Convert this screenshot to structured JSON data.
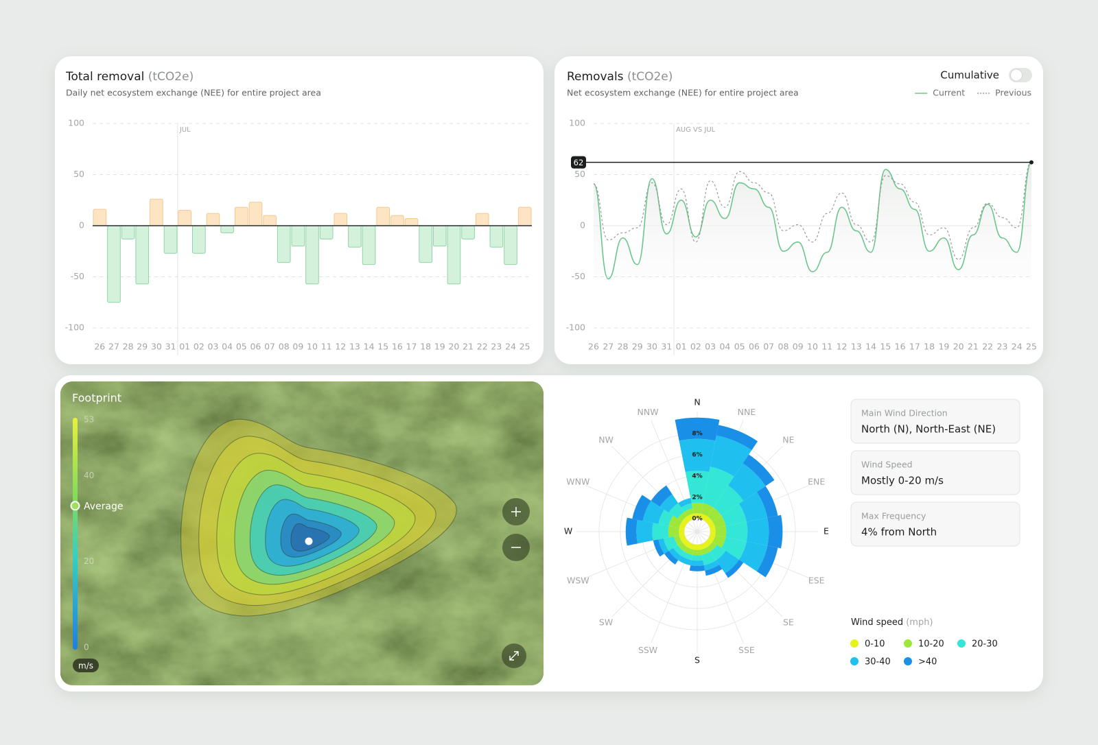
{
  "chart_data": [
    {
      "type": "bar",
      "title": "Total removal",
      "title_unit": "(tCO2e)",
      "subtitle": "Daily net ecosystem exchange (NEE) for entire project area",
      "annotation": "JUL",
      "categories": [
        "26",
        "27",
        "28",
        "29",
        "30",
        "31",
        "01",
        "02",
        "03",
        "04",
        "05",
        "06",
        "07",
        "08",
        "09",
        "10",
        "11",
        "12",
        "13",
        "14",
        "15",
        "16",
        "17",
        "18",
        "19",
        "20",
        "21",
        "22",
        "23",
        "24",
        "25"
      ],
      "values": [
        16,
        -75,
        -13,
        -57,
        26,
        -27,
        15,
        -27,
        12,
        -7,
        18,
        23,
        10,
        -36,
        -20,
        -57,
        -13,
        12,
        -21,
        -38,
        18,
        10,
        7,
        -36,
        -20,
        -57,
        -13,
        12,
        -21,
        -38,
        18
      ],
      "positive_color": "#fde4c2",
      "negative_color": "#d4f1dc",
      "ylim": [
        -100,
        100
      ],
      "yticks": [
        100,
        50,
        0,
        -50,
        -100
      ],
      "grid": true
    },
    {
      "type": "line",
      "title": "Removals",
      "title_unit": "(tCO2e)",
      "subtitle": "Net ecosystem exchange (NEE) for entire project area",
      "annotation": "AUG VS JUL",
      "toggle_label": "Cumulative",
      "cumulative": false,
      "categories": [
        "26",
        "27",
        "28",
        "29",
        "30",
        "31",
        "01",
        "02",
        "03",
        "04",
        "05",
        "06",
        "07",
        "08",
        "09",
        "10",
        "11",
        "12",
        "13",
        "14",
        "15",
        "16",
        "17",
        "18",
        "19",
        "20",
        "21",
        "22",
        "23",
        "24",
        "25"
      ],
      "series": [
        {
          "name": "Current",
          "color": "#6cc58a",
          "values": [
            41,
            -52,
            -12,
            -38,
            46,
            -8,
            25,
            -11,
            25,
            7,
            42,
            36,
            18,
            -25,
            -16,
            -45,
            -26,
            18,
            -5,
            -26,
            55,
            36,
            16,
            -25,
            -12,
            -43,
            -9,
            21,
            -12,
            -26,
            62
          ]
        },
        {
          "name": "Previous",
          "color": "#9a9a9a",
          "dashed": true,
          "values": [
            41,
            -14,
            -7,
            -2,
            42,
            1,
            36,
            -16,
            44,
            18,
            53,
            42,
            32,
            -5,
            1,
            -16,
            12,
            32,
            1,
            -16,
            49,
            41,
            23,
            -9,
            -2,
            -33,
            -2,
            22,
            8,
            -2,
            63
          ]
        }
      ],
      "ylim": [
        -100,
        100
      ],
      "yticks": [
        100,
        50,
        0,
        -50,
        -100
      ],
      "grid": true
    },
    {
      "type": "rose",
      "legend_title": "Wind speed",
      "legend_unit": "(mph)",
      "directions": [
        "N",
        "NNE",
        "NE",
        "ENE",
        "E",
        "ESE",
        "SE",
        "SSE",
        "S",
        "SSW",
        "SW",
        "WSW",
        "W",
        "WNW",
        "NW",
        "NNW"
      ],
      "series": [
        {
          "name": "0-10",
          "color": "#e6f21c",
          "values": [
            0.5,
            0.5,
            0.5,
            0.5,
            0.5,
            0.5,
            0.5,
            0.5,
            0.5,
            0.5,
            0.5,
            0.5,
            0.5,
            0.5,
            0.5,
            0.5
          ]
        },
        {
          "name": "10-20",
          "color": "#9fe63a",
          "values": [
            1,
            1,
            1,
            1,
            1,
            1,
            0.5,
            0.5,
            0.5,
            0.5,
            0.5,
            0.5,
            1,
            1,
            0.5,
            0.5
          ]
        },
        {
          "name": "20-30",
          "color": "#33e6d6",
          "values": [
            3,
            3.5,
            2.5,
            2,
            2,
            2,
            1,
            1,
            0.5,
            0.5,
            0.5,
            1,
            1.5,
            1,
            1,
            0.5
          ]
        },
        {
          "name": "30-40",
          "color": "#1fbff0",
          "values": [
            3,
            3,
            2.5,
            2,
            2,
            2,
            1.5,
            0.5,
            0.5,
            0.5,
            0.5,
            0.5,
            1.5,
            1.5,
            1,
            0.5
          ]
        },
        {
          "name": ">40",
          "color": "#1a8fe8",
          "values": [
            2,
            1,
            1,
            1,
            1.3,
            1,
            0.5,
            0.5,
            0.5,
            0,
            0.5,
            0.5,
            1,
            1,
            1,
            0
          ]
        }
      ],
      "rlim": [
        0,
        10
      ],
      "rticks": [
        {
          "value": 0,
          "label": "0%"
        },
        {
          "value": 2,
          "label": "2%"
        },
        {
          "value": 4,
          "label": "4%"
        },
        {
          "value": 6,
          "label": "6%"
        },
        {
          "value": 8,
          "label": "8%"
        }
      ]
    }
  ],
  "footprint": {
    "title": "Footprint",
    "scale_lim": [
      0,
      53
    ],
    "scale_ticks": [
      53,
      40,
      20,
      0
    ],
    "average_label": "Average",
    "average": 33,
    "unit": "m/s"
  },
  "wind_info": [
    {
      "label": "Main Wind Direction",
      "value": "North (N), North-East (NE)"
    },
    {
      "label": "Wind Speed",
      "value": "Mostly 0-20 m/s"
    },
    {
      "label": "Max Frequency",
      "value": "4% from North"
    }
  ]
}
